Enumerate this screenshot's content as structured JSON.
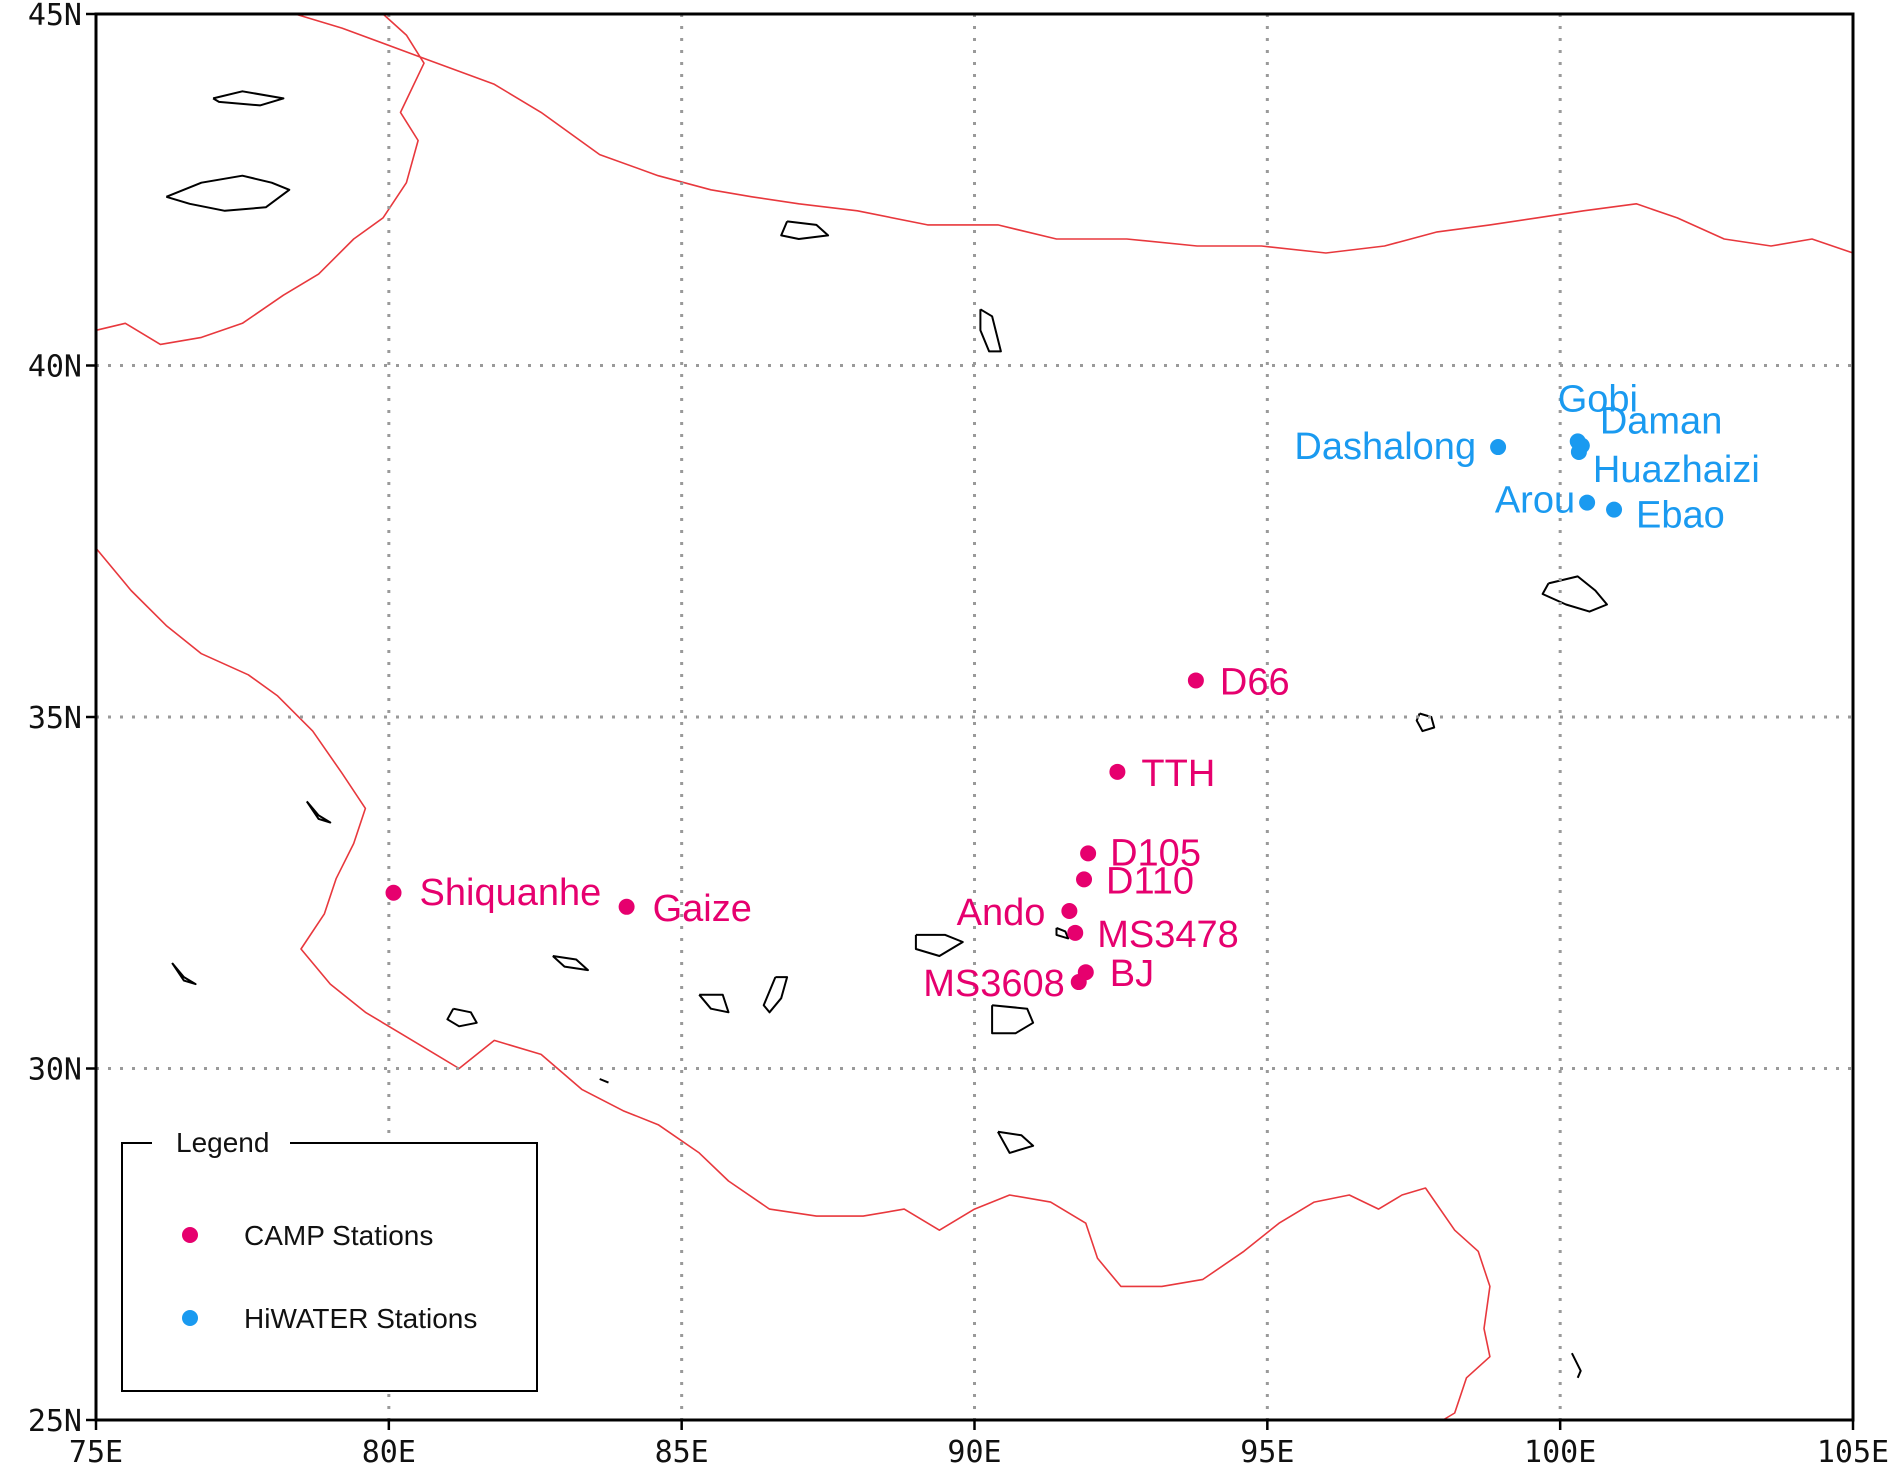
{
  "chart_data": {
    "type": "map",
    "lon_range": [
      75,
      105
    ],
    "lat_range": [
      25,
      45
    ],
    "grid": true,
    "x_ticks": [
      {
        "value": 75,
        "label": "75E"
      },
      {
        "value": 80,
        "label": "80E"
      },
      {
        "value": 85,
        "label": "85E"
      },
      {
        "value": 90,
        "label": "90E"
      },
      {
        "value": 95,
        "label": "95E"
      },
      {
        "value": 100,
        "label": "100E"
      },
      {
        "value": 105,
        "label": "105E"
      }
    ],
    "y_ticks": [
      {
        "value": 25,
        "label": "25N"
      },
      {
        "value": 30,
        "label": "30N"
      },
      {
        "value": 35,
        "label": "35N"
      },
      {
        "value": 40,
        "label": "40N"
      },
      {
        "value": 45,
        "label": "45N"
      }
    ],
    "series": [
      {
        "name": "CAMP Stations",
        "color": "#e6006e",
        "points": [
          {
            "label": "Shiquanhe",
            "lon": 80.08,
            "lat": 32.5
          },
          {
            "label": "Gaize",
            "lon": 84.06,
            "lat": 32.3
          },
          {
            "label": "D66",
            "lon": 93.78,
            "lat": 35.52
          },
          {
            "label": "TTH",
            "lon": 92.44,
            "lat": 34.22
          },
          {
            "label": "D105",
            "lon": 91.94,
            "lat": 33.06
          },
          {
            "label": "D110",
            "lon": 91.87,
            "lat": 32.69
          },
          {
            "label": "Ando",
            "lon": 91.62,
            "lat": 32.24
          },
          {
            "label": "MS3478",
            "lon": 91.72,
            "lat": 31.93
          },
          {
            "label": "BJ",
            "lon": 91.9,
            "lat": 31.37
          },
          {
            "label": "MS3608",
            "lon": 91.78,
            "lat": 31.23
          }
        ]
      },
      {
        "name": "HiWATER Stations",
        "color": "#1a9af0",
        "points": [
          {
            "label": "Gobi",
            "lon": 100.3,
            "lat": 38.92
          },
          {
            "label": "Daman",
            "lon": 100.37,
            "lat": 38.86
          },
          {
            "label": "Dashalong",
            "lon": 98.94,
            "lat": 38.84
          },
          {
            "label": "Huazhaizi",
            "lon": 100.32,
            "lat": 38.77
          },
          {
            "label": "Arou",
            "lon": 100.46,
            "lat": 38.05
          },
          {
            "label": "Ebao",
            "lon": 100.92,
            "lat": 37.95
          }
        ]
      }
    ],
    "legend": {
      "title": "Legend",
      "position": "bottom-left"
    },
    "border_color": "#e8383d",
    "lake_color": "#000000",
    "border_lines": [
      [
        [
          75.0,
          40.5
        ],
        [
          75.5,
          40.6
        ],
        [
          76.1,
          40.3
        ],
        [
          76.8,
          40.4
        ],
        [
          77.5,
          40.6
        ],
        [
          78.2,
          41.0
        ],
        [
          78.8,
          41.3
        ],
        [
          79.4,
          41.8
        ],
        [
          79.9,
          42.1
        ],
        [
          80.3,
          42.6
        ],
        [
          80.5,
          43.2
        ],
        [
          80.2,
          43.6
        ],
        [
          80.6,
          44.3
        ],
        [
          80.3,
          44.7
        ],
        [
          79.9,
          45.0
        ]
      ],
      [
        [
          78.4,
          45.0
        ],
        [
          79.2,
          44.8
        ],
        [
          80.5,
          44.4
        ],
        [
          81.8,
          44.0
        ],
        [
          82.6,
          43.6
        ],
        [
          83.6,
          43.0
        ],
        [
          84.6,
          42.7
        ],
        [
          85.5,
          42.5
        ],
        [
          86.2,
          42.4
        ],
        [
          87.0,
          42.3
        ],
        [
          88.0,
          42.2
        ],
        [
          89.2,
          42.0
        ],
        [
          90.4,
          42.0
        ],
        [
          91.4,
          41.8
        ],
        [
          92.6,
          41.8
        ],
        [
          93.8,
          41.7
        ],
        [
          94.9,
          41.7
        ],
        [
          96.0,
          41.6
        ],
        [
          97.0,
          41.7
        ],
        [
          97.9,
          41.9
        ],
        [
          98.8,
          42.0
        ],
        [
          99.6,
          42.1
        ],
        [
          100.4,
          42.2
        ],
        [
          101.3,
          42.3
        ],
        [
          102.0,
          42.1
        ],
        [
          102.8,
          41.8
        ],
        [
          103.6,
          41.7
        ],
        [
          104.3,
          41.8
        ],
        [
          105.0,
          41.6
        ]
      ],
      [
        [
          75.0,
          37.4
        ],
        [
          75.6,
          36.8
        ],
        [
          76.2,
          36.3
        ],
        [
          76.8,
          35.9
        ],
        [
          77.6,
          35.6
        ],
        [
          78.1,
          35.3
        ],
        [
          78.7,
          34.8
        ],
        [
          79.2,
          34.2
        ],
        [
          79.6,
          33.7
        ],
        [
          79.4,
          33.2
        ],
        [
          79.1,
          32.7
        ],
        [
          78.9,
          32.2
        ],
        [
          78.5,
          31.7
        ],
        [
          79.0,
          31.2
        ],
        [
          79.6,
          30.8
        ],
        [
          80.2,
          30.5
        ],
        [
          80.8,
          30.2
        ],
        [
          81.2,
          30.0
        ],
        [
          81.8,
          30.4
        ],
        [
          82.6,
          30.2
        ],
        [
          83.3,
          29.7
        ],
        [
          84.0,
          29.4
        ],
        [
          84.6,
          29.2
        ],
        [
          85.3,
          28.8
        ],
        [
          85.8,
          28.4
        ],
        [
          86.5,
          28.0
        ],
        [
          87.3,
          27.9
        ],
        [
          88.1,
          27.9
        ],
        [
          88.8,
          28.0
        ],
        [
          89.4,
          27.7
        ],
        [
          90.0,
          28.0
        ],
        [
          90.6,
          28.2
        ],
        [
          91.3,
          28.1
        ],
        [
          91.9,
          27.8
        ],
        [
          92.1,
          27.3
        ],
        [
          92.5,
          26.9
        ],
        [
          93.2,
          26.9
        ],
        [
          93.9,
          27.0
        ],
        [
          94.6,
          27.4
        ],
        [
          95.2,
          27.8
        ],
        [
          95.8,
          28.1
        ],
        [
          96.4,
          28.2
        ],
        [
          96.9,
          28.0
        ],
        [
          97.3,
          28.2
        ],
        [
          97.7,
          28.3
        ],
        [
          98.2,
          27.7
        ],
        [
          98.6,
          27.4
        ],
        [
          98.8,
          26.9
        ],
        [
          98.7,
          26.3
        ],
        [
          98.8,
          25.9
        ],
        [
          98.4,
          25.6
        ],
        [
          98.2,
          25.1
        ],
        [
          98.0,
          25.0
        ]
      ]
    ],
    "lakes": [
      [
        [
          77.0,
          43.8
        ],
        [
          77.5,
          43.9
        ],
        [
          78.2,
          43.8
        ],
        [
          77.8,
          43.7
        ],
        [
          77.1,
          43.75
        ],
        [
          77.0,
          43.8
        ]
      ],
      [
        [
          76.2,
          42.4
        ],
        [
          76.8,
          42.6
        ],
        [
          77.5,
          42.7
        ],
        [
          78.0,
          42.6
        ],
        [
          78.3,
          42.5
        ],
        [
          77.9,
          42.25
        ],
        [
          77.2,
          42.2
        ],
        [
          76.6,
          42.3
        ],
        [
          76.2,
          42.4
        ]
      ],
      [
        [
          86.8,
          42.05
        ],
        [
          87.3,
          42.0
        ],
        [
          87.5,
          41.85
        ],
        [
          87.0,
          41.8
        ],
        [
          86.7,
          41.85
        ],
        [
          86.8,
          42.05
        ]
      ],
      [
        [
          90.1,
          40.8
        ],
        [
          90.3,
          40.7
        ],
        [
          90.45,
          40.2
        ],
        [
          90.25,
          40.2
        ],
        [
          90.1,
          40.5
        ],
        [
          90.1,
          40.8
        ]
      ],
      [
        [
          99.8,
          36.9
        ],
        [
          100.3,
          37.0
        ],
        [
          100.6,
          36.8
        ],
        [
          100.8,
          36.6
        ],
        [
          100.5,
          36.5
        ],
        [
          100.1,
          36.6
        ],
        [
          99.7,
          36.75
        ],
        [
          99.8,
          36.9
        ]
      ],
      [
        [
          97.6,
          35.05
        ],
        [
          97.8,
          35.0
        ],
        [
          97.85,
          34.85
        ],
        [
          97.65,
          34.8
        ],
        [
          97.55,
          34.95
        ],
        [
          97.6,
          35.05
        ]
      ],
      [
        [
          78.6,
          33.8
        ],
        [
          78.8,
          33.6
        ],
        [
          79.0,
          33.5
        ],
        [
          78.8,
          33.55
        ],
        [
          78.6,
          33.8
        ]
      ],
      [
        [
          89.0,
          31.9
        ],
        [
          89.5,
          31.9
        ],
        [
          89.8,
          31.8
        ],
        [
          89.4,
          31.6
        ],
        [
          89.0,
          31.7
        ],
        [
          89.0,
          31.9
        ]
      ],
      [
        [
          91.4,
          32.0
        ],
        [
          91.55,
          31.95
        ],
        [
          91.6,
          31.85
        ],
        [
          91.4,
          31.9
        ],
        [
          91.4,
          32.0
        ]
      ],
      [
        [
          82.8,
          31.6
        ],
        [
          83.2,
          31.55
        ],
        [
          83.4,
          31.4
        ],
        [
          83.0,
          31.45
        ],
        [
          82.8,
          31.6
        ]
      ],
      [
        [
          85.3,
          31.05
        ],
        [
          85.7,
          31.05
        ],
        [
          85.8,
          30.8
        ],
        [
          85.5,
          30.85
        ],
        [
          85.3,
          31.05
        ]
      ],
      [
        [
          86.6,
          31.3
        ],
        [
          86.8,
          31.3
        ],
        [
          86.7,
          31.0
        ],
        [
          86.5,
          30.8
        ],
        [
          86.4,
          30.9
        ],
        [
          86.6,
          31.3
        ]
      ],
      [
        [
          81.1,
          30.85
        ],
        [
          81.4,
          30.8
        ],
        [
          81.5,
          30.65
        ],
        [
          81.2,
          30.6
        ],
        [
          81.0,
          30.7
        ],
        [
          81.1,
          30.85
        ]
      ],
      [
        [
          90.3,
          30.9
        ],
        [
          90.9,
          30.85
        ],
        [
          91.0,
          30.65
        ],
        [
          90.7,
          30.5
        ],
        [
          90.3,
          30.5
        ],
        [
          90.3,
          30.9
        ]
      ],
      [
        [
          90.4,
          29.1
        ],
        [
          90.8,
          29.05
        ],
        [
          91.0,
          28.9
        ],
        [
          90.6,
          28.8
        ],
        [
          90.4,
          29.1
        ]
      ],
      [
        [
          76.3,
          31.5
        ],
        [
          76.5,
          31.3
        ],
        [
          76.7,
          31.2
        ],
        [
          76.5,
          31.25
        ],
        [
          76.3,
          31.5
        ]
      ],
      [
        [
          83.6,
          29.85
        ],
        [
          83.75,
          29.8
        ]
      ],
      [
        [
          100.2,
          25.95
        ],
        [
          100.35,
          25.7
        ],
        [
          100.3,
          25.6
        ]
      ]
    ]
  }
}
